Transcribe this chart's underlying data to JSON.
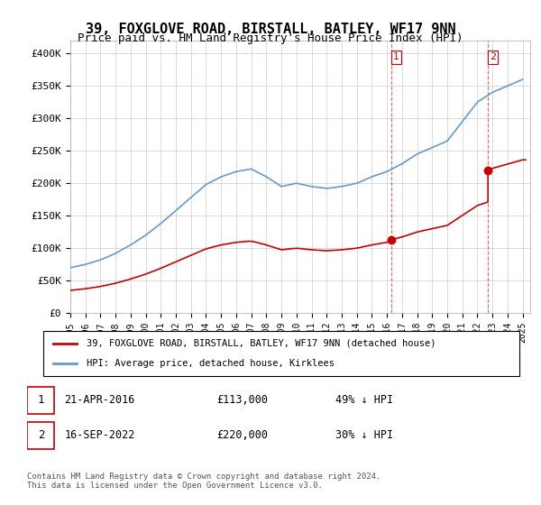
{
  "title": "39, FOXGLOVE ROAD, BIRSTALL, BATLEY, WF17 9NN",
  "subtitle": "Price paid vs. HM Land Registry's House Price Index (HPI)",
  "ylabel_ticks": [
    "£0",
    "£50K",
    "£100K",
    "£150K",
    "£200K",
    "£250K",
    "£300K",
    "£350K",
    "£400K"
  ],
  "ytick_values": [
    0,
    50000,
    100000,
    150000,
    200000,
    250000,
    300000,
    350000,
    400000
  ],
  "ylim": [
    0,
    420000
  ],
  "xlim_start": 1995.0,
  "xlim_end": 2025.5,
  "hpi_color": "#6699cc",
  "property_color": "#cc0000",
  "marker1_date": 2016.3,
  "marker1_price": 113000,
  "marker1_label": "1",
  "marker2_date": 2022.7,
  "marker2_price": 220000,
  "marker2_label": "2",
  "legend_property": "39, FOXGLOVE ROAD, BIRSTALL, BATLEY, WF17 9NN (detached house)",
  "legend_hpi": "HPI: Average price, detached house, Kirklees",
  "table_row1": "1    21-APR-2016         £113,000        49% ↓ HPI",
  "table_row2": "2    16-SEP-2022         £220,000        30% ↓ HPI",
  "footnote": "Contains HM Land Registry data © Crown copyright and database right 2024.\nThis data is licensed under the Open Government Licence v3.0.",
  "xtick_years": [
    1995,
    1996,
    1997,
    1998,
    1999,
    2000,
    2001,
    2002,
    2003,
    2004,
    2005,
    2006,
    2007,
    2008,
    2009,
    2010,
    2011,
    2012,
    2013,
    2014,
    2015,
    2016,
    2017,
    2018,
    2019,
    2020,
    2021,
    2022,
    2023,
    2024,
    2025
  ]
}
